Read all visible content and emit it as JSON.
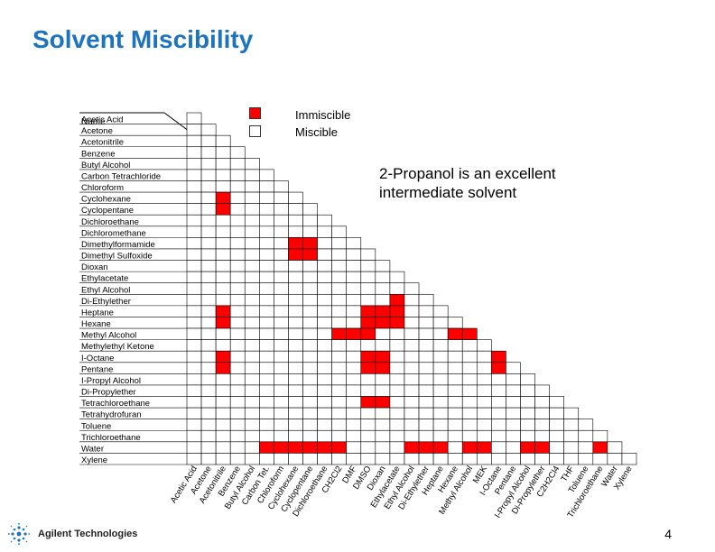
{
  "page": {
    "title": "Solvent Miscibility",
    "note": "2-Propanol is an excellent intermediate solvent",
    "page_number": "4",
    "company": "Agilent Technologies"
  },
  "legend": {
    "immiscible_label": "Immiscible",
    "miscible_label": "Miscible",
    "immiscible_color": "#ff0000",
    "miscible_color": "#ffffff"
  },
  "chart_data": {
    "type": "table",
    "title": "Solvent Miscibility",
    "row_header": "Name",
    "rows": [
      "Acetic Acid",
      "Acetone",
      "Acetonitrile",
      "Benzene",
      "Butyl Alcohol",
      "Carbon Tetrachloride",
      "Chloroform",
      "Cyclohexane",
      "Cyclopentane",
      "Dichloroethane",
      "Dichloromethane",
      "Dimethylformamide",
      "Dimethyl Sulfoxide",
      "Dioxan",
      "Ethylacetate",
      "Ethyl Alcohol",
      "Di-Ethylether",
      "Heptane",
      "Hexane",
      "Methyl Alcohol",
      "Methylethyl Ketone",
      "I-Octane",
      "Pentane",
      "I-Propyl Alcohol",
      "Di-Propylether",
      "Tetrachloroethane",
      "Tetrahydrofuran",
      "Toluene",
      "Trichloroethane",
      "Water",
      "Xylene"
    ],
    "columns": [
      "Acetic Acid",
      "Acetone",
      "Acetonitrile",
      "Benzene",
      "Butyl Alcohol",
      "Carbon Tet.",
      "Chloroform",
      "Cyclohexane",
      "Cyclopentane",
      "Dichloroethane",
      "CH2Cl2",
      "DMF",
      "DMSO",
      "Dioxan",
      "Ethylacetate",
      "Ethyl Alcohol",
      "Di-Ethylether",
      "Heptane",
      "Hexane",
      "Methyl Alcohol",
      "MEK",
      "I-Octane",
      "Pentane",
      "I-Propyl Alcohol",
      "Di-Propylether",
      "C2H2Cl4",
      "THF",
      "Toluene",
      "Trichloroethane",
      "Water",
      "Xylene"
    ],
    "immiscible_pairs": [
      [
        29,
        5
      ],
      [
        29,
        6
      ],
      [
        29,
        7
      ],
      [
        29,
        8
      ],
      [
        29,
        9
      ],
      [
        29,
        10
      ],
      [
        29,
        15
      ],
      [
        29,
        16
      ],
      [
        29,
        17
      ],
      [
        29,
        19
      ],
      [
        29,
        20
      ],
      [
        29,
        23
      ],
      [
        29,
        24
      ],
      [
        29,
        28
      ],
      [
        25,
        12
      ],
      [
        25,
        13
      ],
      [
        22,
        2
      ],
      [
        22,
        12
      ],
      [
        22,
        13
      ],
      [
        22,
        21
      ],
      [
        21,
        2
      ],
      [
        21,
        12
      ],
      [
        21,
        13
      ],
      [
        21,
        21
      ],
      [
        19,
        10
      ],
      [
        19,
        11
      ],
      [
        19,
        12
      ],
      [
        19,
        18
      ],
      [
        19,
        19
      ],
      [
        18,
        2
      ],
      [
        18,
        12
      ],
      [
        18,
        13
      ],
      [
        18,
        14
      ],
      [
        17,
        2
      ],
      [
        17,
        12
      ],
      [
        17,
        13
      ],
      [
        17,
        14
      ],
      [
        16,
        14
      ],
      [
        12,
        7
      ],
      [
        12,
        8
      ],
      [
        11,
        7
      ],
      [
        11,
        8
      ],
      [
        8,
        2
      ],
      [
        7,
        2
      ]
    ]
  }
}
